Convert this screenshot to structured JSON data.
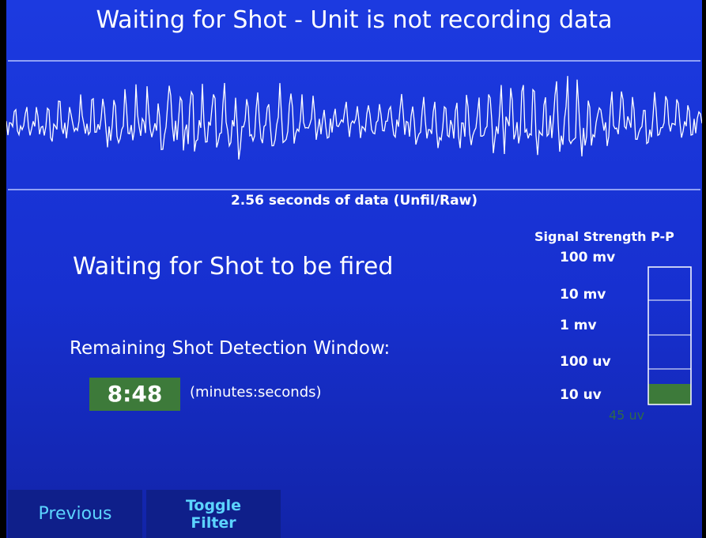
{
  "header": {
    "title": "Waiting for Shot - Unit is not recording data"
  },
  "waveform": {
    "caption": "2.56 seconds of data (Unfil/Raw)"
  },
  "status": {
    "message": "Waiting for Shot to be fired",
    "window_label": "Remaining Shot Detection Window:",
    "timer": "8:48",
    "timer_units": "(minutes:seconds)"
  },
  "signal_strength": {
    "title": "Signal Strength P-P",
    "levels": [
      "100 mv",
      "10 mv",
      "1 mv",
      "100 uv",
      "10 uv"
    ],
    "reading": "45 uv"
  },
  "buttons": [
    {
      "label": "Previous"
    },
    {
      "label": [
        "Toggle",
        "Filter"
      ]
    }
  ]
}
